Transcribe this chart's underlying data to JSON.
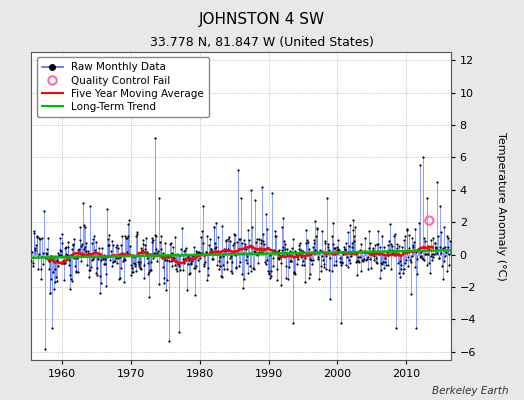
{
  "title": "JOHNSTON 4 SW",
  "subtitle": "33.778 N, 81.847 W (United States)",
  "credit": "Berkeley Earth",
  "ylabel": "Temperature Anomaly (°C)",
  "xlim": [
    1955.5,
    2016.5
  ],
  "ylim": [
    -6.5,
    12.5
  ],
  "yticks": [
    -6,
    -4,
    -2,
    0,
    2,
    4,
    6,
    8,
    10,
    12
  ],
  "xticks": [
    1960,
    1970,
    1980,
    1990,
    2000,
    2010
  ],
  "start_year": 1955.5,
  "n_months": 732,
  "bg_color": "#e8e8e8",
  "plot_bg_color": "#ffffff",
  "raw_line_color": "#4466ff",
  "raw_dot_color": "#000000",
  "moving_avg_color": "#ff0000",
  "trend_color": "#00bb00",
  "qc_color": "#ff69b4",
  "qc_time": 2013.4,
  "qc_val": 2.1,
  "title_fontsize": 11,
  "subtitle_fontsize": 9,
  "tick_fontsize": 8,
  "legend_fontsize": 7.5,
  "ylabel_fontsize": 8,
  "credit_fontsize": 7.5,
  "seed": 12345
}
